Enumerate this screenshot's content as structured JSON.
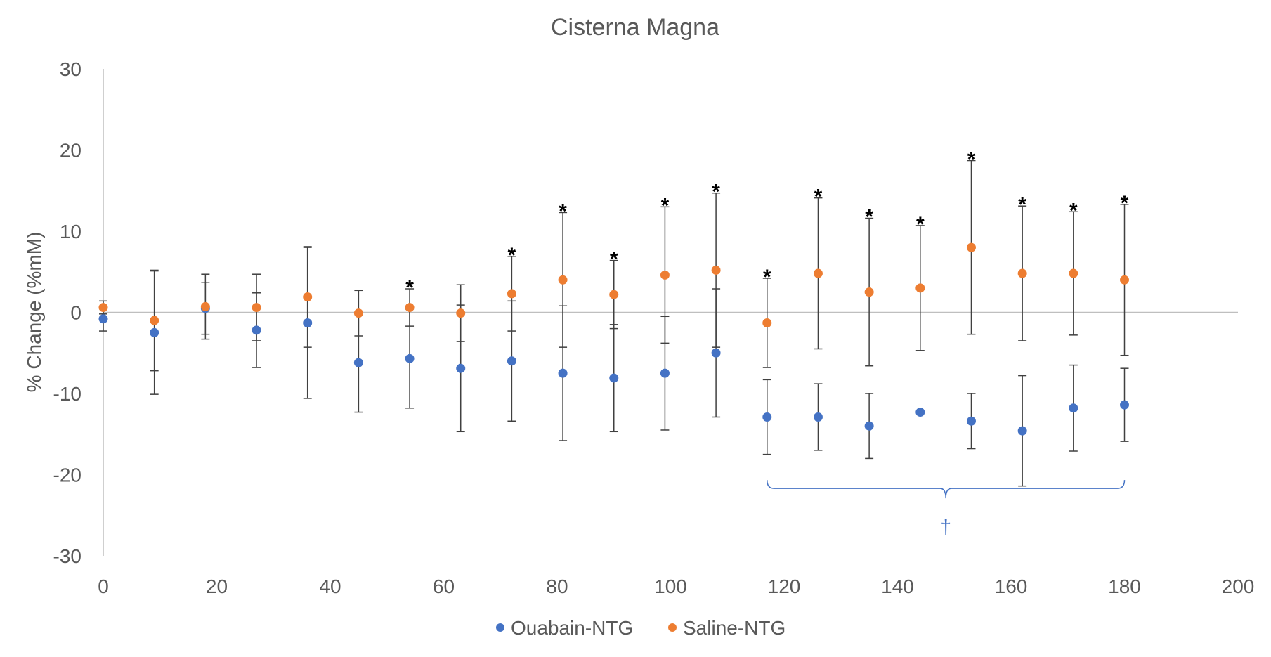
{
  "chart_data": {
    "type": "scatter",
    "title": "Cisterna Magna",
    "xlabel": "",
    "ylabel": "% Change (%mM)",
    "xlim": [
      0,
      200
    ],
    "ylim": [
      -30,
      30
    ],
    "x_ticks": [
      0,
      20,
      40,
      60,
      80,
      100,
      120,
      140,
      160,
      180,
      200
    ],
    "y_ticks": [
      -30,
      -20,
      -10,
      0,
      10,
      20,
      30
    ],
    "grid": false,
    "legend_position": "bottom-center",
    "series": [
      {
        "name": "Ouabain-NTG",
        "color": "#4472C4",
        "x": [
          0,
          9,
          18,
          27,
          36,
          45,
          54,
          63,
          72,
          81,
          90,
          99,
          108,
          117,
          126,
          135,
          144,
          153,
          162,
          171,
          180
        ],
        "y": [
          -0.8,
          -2.5,
          0.5,
          -2.2,
          -1.3,
          -6.2,
          -5.7,
          -6.9,
          -6.0,
          -7.5,
          -8.1,
          -7.5,
          -5.0,
          -12.9,
          -12.9,
          -14.0,
          -12.3,
          -13.4,
          -14.6,
          -11.8,
          -11.4
        ],
        "error": [
          1.5,
          7.6,
          3.2,
          4.6,
          9.3,
          6.1,
          6.1,
          7.8,
          7.4,
          8.3,
          6.6,
          7.0,
          7.9,
          4.6,
          4.1,
          4.0,
          0,
          3.4,
          6.8,
          5.3,
          4.5
        ]
      },
      {
        "name": "Saline-NTG",
        "color": "#ED7D31",
        "x": [
          0,
          9,
          18,
          27,
          36,
          45,
          54,
          63,
          72,
          81,
          90,
          99,
          108,
          117,
          126,
          135,
          144,
          153,
          162,
          171,
          180
        ],
        "y": [
          0.6,
          -1.0,
          0.7,
          0.6,
          1.9,
          -0.1,
          0.6,
          -0.1,
          2.3,
          4.0,
          2.2,
          4.6,
          5.2,
          -1.3,
          4.8,
          2.5,
          3.0,
          8.0,
          4.8,
          4.8,
          4.0
        ],
        "error": [
          0.8,
          6.2,
          4.0,
          4.1,
          6.2,
          2.8,
          2.3,
          3.5,
          4.6,
          8.3,
          4.2,
          8.4,
          9.5,
          5.5,
          9.3,
          9.1,
          7.7,
          10.7,
          8.3,
          7.6,
          9.3
        ]
      }
    ],
    "annotations": {
      "significance_markers": [
        {
          "x": 54,
          "y": 2.9,
          "text": "*"
        },
        {
          "x": 72,
          "y": 6.9,
          "text": "*"
        },
        {
          "x": 81,
          "y": 12.3,
          "text": "*"
        },
        {
          "x": 90,
          "y": 6.4,
          "text": "*"
        },
        {
          "x": 99,
          "y": 13.0,
          "text": "*"
        },
        {
          "x": 108,
          "y": 14.7,
          "text": "*"
        },
        {
          "x": 117,
          "y": 4.2,
          "text": "*"
        },
        {
          "x": 126,
          "y": 14.1,
          "text": "*"
        },
        {
          "x": 135,
          "y": 11.6,
          "text": "*"
        },
        {
          "x": 144,
          "y": 10.7,
          "text": "*"
        },
        {
          "x": 153,
          "y": 18.7,
          "text": "*"
        },
        {
          "x": 162,
          "y": 13.1,
          "text": "*"
        },
        {
          "x": 171,
          "y": 12.4,
          "text": "*"
        },
        {
          "x": 180,
          "y": 13.3,
          "text": "*"
        }
      ],
      "bracket": {
        "x_start": 117,
        "x_end": 180,
        "y": -21.7,
        "label": "†",
        "color": "#4472C4"
      }
    }
  }
}
